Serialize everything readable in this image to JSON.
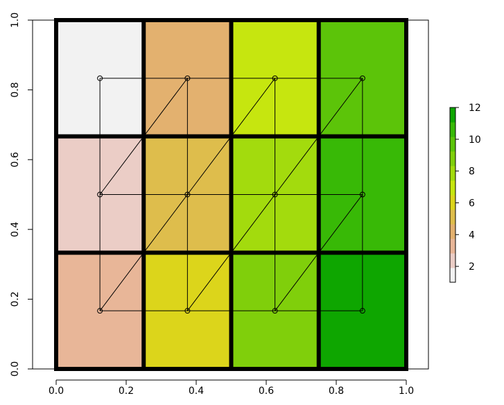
{
  "chart_data": {
    "type": "heatmap",
    "title": "",
    "xlabel": "",
    "ylabel": "",
    "xlim": [
      0,
      1
    ],
    "ylim": [
      0,
      1
    ],
    "x_ticks": [
      "0.0",
      "0.2",
      "0.4",
      "0.6",
      "0.8",
      "1.0"
    ],
    "y_ticks": [
      "0.0",
      "0.2",
      "0.4",
      "0.6",
      "0.8",
      "1.0"
    ],
    "grid": {
      "ncols": 4,
      "nrows": 3
    },
    "cells_top_to_bottom": [
      [
        1,
        4,
        7,
        10
      ],
      [
        2,
        5,
        8,
        11
      ],
      [
        3,
        6,
        9,
        12
      ]
    ],
    "mesh_points": {
      "x": [
        0.125,
        0.375,
        0.625,
        0.875
      ],
      "y": [
        0.8333,
        0.5,
        0.1667
      ]
    },
    "colorbar": {
      "range": [
        1,
        12
      ],
      "ticks": [
        "2",
        "4",
        "6",
        "8",
        "10",
        "12"
      ],
      "tick_values": [
        2,
        4,
        6,
        8,
        10,
        12
      ],
      "colors": [
        "#f2f2f2",
        "#ebcdc6",
        "#e8b698",
        "#e3b16f",
        "#debd4c",
        "#dcd51b",
        "#c6e60f",
        "#a3db0d",
        "#80cf0b",
        "#5cc409",
        "#38b906",
        "#0ea600"
      ]
    }
  }
}
